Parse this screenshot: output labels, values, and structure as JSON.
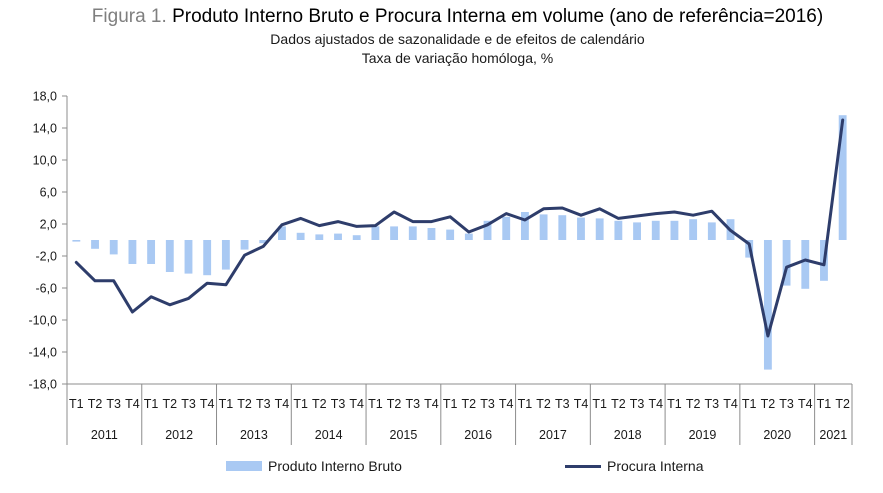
{
  "title": {
    "prefix": "Figura 1.",
    "main": "Produto Interno Bruto e Procura Interna em volume (ano de referência=2016)",
    "subtitle1": "Dados ajustados de sazonalidade e de efeitos de calendário",
    "subtitle2": "Taxa de variação homóloga, %"
  },
  "colors": {
    "bar": "#a9c9f3",
    "line": "#2e3d6b",
    "axis": "#8c8c8c"
  },
  "chart_data": {
    "type": "bar",
    "title": "Produto Interno Bruto e Procura Interna em volume (ano de referência=2016)",
    "xlabel": "",
    "ylabel": "Taxa de variação homóloga, %",
    "ylim": [
      -18,
      18
    ],
    "yticks": [
      "18,0",
      "14,0",
      "10,0",
      "6,0",
      "2,0",
      "-2,0",
      "-6,0",
      "-10,0",
      "-14,0",
      "-18,0"
    ],
    "ytick_values": [
      18,
      14,
      10,
      6,
      2,
      -2,
      -6,
      -10,
      -14,
      -18
    ],
    "categories": [
      "T1",
      "T2",
      "T3",
      "T4",
      "T1",
      "T2",
      "T3",
      "T4",
      "T1",
      "T2",
      "T3",
      "T4",
      "T1",
      "T2",
      "T3",
      "T4",
      "T1",
      "T2",
      "T3",
      "T4",
      "T1",
      "T2",
      "T3",
      "T4",
      "T1",
      "T2",
      "T3",
      "T4",
      "T1",
      "T2",
      "T3",
      "T4",
      "T1",
      "T2",
      "T3",
      "T4",
      "T1",
      "T2",
      "T3",
      "T4",
      "T1",
      "T2"
    ],
    "years": [
      {
        "label": "2011",
        "count": 4
      },
      {
        "label": "2012",
        "count": 4
      },
      {
        "label": "2013",
        "count": 4
      },
      {
        "label": "2014",
        "count": 4
      },
      {
        "label": "2015",
        "count": 4
      },
      {
        "label": "2016",
        "count": 4
      },
      {
        "label": "2017",
        "count": 4
      },
      {
        "label": "2018",
        "count": 4
      },
      {
        "label": "2019",
        "count": 4
      },
      {
        "label": "2020",
        "count": 4
      },
      {
        "label": "2021",
        "count": 2
      }
    ],
    "series": [
      {
        "name": "Produto Interno Bruto",
        "kind": "bar",
        "values": [
          -0.2,
          -1.1,
          -1.8,
          -3.0,
          -3.0,
          -4.0,
          -4.2,
          -4.4,
          -3.7,
          -1.2,
          -0.4,
          1.7,
          0.9,
          0.7,
          0.8,
          0.6,
          1.7,
          1.7,
          1.7,
          1.5,
          1.3,
          0.8,
          2.4,
          2.9,
          3.5,
          3.2,
          3.1,
          2.8,
          2.7,
          2.4,
          2.2,
          2.4,
          2.4,
          2.6,
          2.2,
          2.6,
          -2.2,
          -16.2,
          -5.7,
          -6.1,
          -5.1,
          15.6
        ]
      },
      {
        "name": "Procura Interna",
        "kind": "line",
        "values": [
          -2.8,
          -5.1,
          -5.1,
          -9.0,
          -7.1,
          -8.1,
          -7.3,
          -5.4,
          -5.6,
          -1.9,
          -0.8,
          1.9,
          2.7,
          1.8,
          2.3,
          1.7,
          1.8,
          3.5,
          2.3,
          2.3,
          2.9,
          1.0,
          1.9,
          3.3,
          2.5,
          3.9,
          4.0,
          3.1,
          3.9,
          2.7,
          3.0,
          3.3,
          3.5,
          3.1,
          3.6,
          1.2,
          -0.5,
          -12.0,
          -3.4,
          -2.5,
          -3.1,
          15.0
        ]
      }
    ],
    "legend": "bottom"
  }
}
